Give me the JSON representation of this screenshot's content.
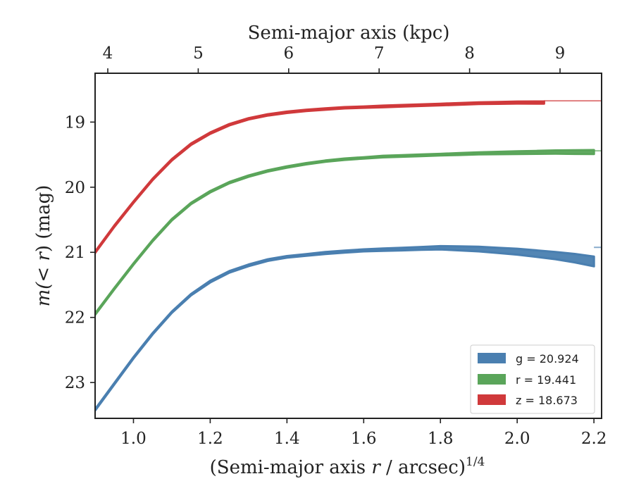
{
  "chart_data": {
    "type": "area",
    "title": "",
    "xlabel_prefix": "(Semi-major axis ",
    "xlabel_var": "r",
    "xlabel_suffix": " / arcsec)",
    "xlabel_exponent": "1/4",
    "ylabel_prefix": "m(",
    "ylabel_var": "< r",
    "ylabel_suffix": ") (mag)",
    "top_xlabel": "Semi-major axis (kpc)",
    "xlim": [
      0.9,
      2.22
    ],
    "ylim": [
      23.55,
      18.25
    ],
    "y_inverted": true,
    "xticks": [
      1.0,
      1.2,
      1.4,
      1.6,
      1.8,
      2.0,
      2.2
    ],
    "xtick_labels": [
      "1.0",
      "1.2",
      "1.4",
      "1.6",
      "1.8",
      "2.0",
      "2.2"
    ],
    "yticks": [
      19,
      20,
      21,
      22,
      23
    ],
    "ytick_labels": [
      "19",
      "20",
      "21",
      "22",
      "23"
    ],
    "top_xticks_kpc": [
      4,
      5,
      6,
      7,
      8,
      9
    ],
    "top_xtick_labels": [
      "4",
      "5",
      "6",
      "7",
      "8",
      "9"
    ],
    "legend_position": "lower-right",
    "series": [
      {
        "name": "g = 20.924",
        "band": "g",
        "total_mag": "20.924",
        "color": "#4a7fb0",
        "x": [
          0.9,
          0.95,
          1.0,
          1.05,
          1.1,
          1.15,
          1.2,
          1.25,
          1.3,
          1.35,
          1.4,
          1.45,
          1.5,
          1.55,
          1.6,
          1.65,
          1.7,
          1.75,
          1.8,
          1.85,
          1.9,
          1.95,
          2.0,
          2.05,
          2.1,
          2.15,
          2.2
        ],
        "y": [
          23.42,
          23.02,
          22.62,
          22.25,
          21.92,
          21.65,
          21.45,
          21.3,
          21.2,
          21.12,
          21.07,
          21.04,
          21.01,
          20.99,
          20.97,
          20.96,
          20.95,
          20.94,
          20.93,
          20.94,
          20.95,
          20.97,
          20.99,
          21.02,
          21.05,
          21.09,
          21.14
        ],
        "err": [
          0.01,
          0.01,
          0.01,
          0.01,
          0.01,
          0.01,
          0.012,
          0.012,
          0.012,
          0.012,
          0.012,
          0.012,
          0.015,
          0.015,
          0.015,
          0.018,
          0.02,
          0.022,
          0.025,
          0.03,
          0.035,
          0.04,
          0.045,
          0.05,
          0.055,
          0.065,
          0.075
        ],
        "asymptote": 20.924
      },
      {
        "name": "r = 19.441",
        "band": "r",
        "total_mag": "19.441",
        "color": "#5aa55a",
        "x": [
          0.9,
          0.95,
          1.0,
          1.05,
          1.1,
          1.15,
          1.2,
          1.25,
          1.3,
          1.35,
          1.4,
          1.45,
          1.5,
          1.55,
          1.6,
          1.65,
          1.7,
          1.75,
          1.8,
          1.85,
          1.9,
          1.95,
          2.0,
          2.05,
          2.1,
          2.15,
          2.2
        ],
        "y": [
          21.95,
          21.56,
          21.18,
          20.82,
          20.5,
          20.25,
          20.07,
          19.93,
          19.83,
          19.75,
          19.69,
          19.64,
          19.6,
          19.57,
          19.55,
          19.53,
          19.52,
          19.51,
          19.5,
          19.49,
          19.48,
          19.475,
          19.47,
          19.465,
          19.46,
          19.46,
          19.46
        ],
        "err": [
          0.01,
          0.01,
          0.01,
          0.01,
          0.01,
          0.01,
          0.01,
          0.01,
          0.01,
          0.01,
          0.01,
          0.01,
          0.01,
          0.01,
          0.01,
          0.012,
          0.012,
          0.012,
          0.012,
          0.015,
          0.015,
          0.018,
          0.02,
          0.022,
          0.025,
          0.028,
          0.03
        ],
        "asymptote": 19.441
      },
      {
        "name": "z = 18.673",
        "band": "z",
        "total_mag": "18.673",
        "color": "#d0393b",
        "x": [
          0.9,
          0.95,
          1.0,
          1.05,
          1.1,
          1.15,
          1.2,
          1.25,
          1.3,
          1.35,
          1.4,
          1.45,
          1.5,
          1.55,
          1.6,
          1.65,
          1.7,
          1.75,
          1.8,
          1.85,
          1.9,
          1.95,
          2.0,
          2.05,
          2.07
        ],
        "y": [
          21.0,
          20.6,
          20.23,
          19.88,
          19.58,
          19.34,
          19.17,
          19.04,
          18.95,
          18.89,
          18.85,
          18.82,
          18.8,
          18.78,
          18.77,
          18.76,
          18.75,
          18.74,
          18.73,
          18.72,
          18.71,
          18.705,
          18.7,
          18.7,
          18.7
        ],
        "err": [
          0.01,
          0.01,
          0.01,
          0.01,
          0.01,
          0.01,
          0.01,
          0.01,
          0.01,
          0.01,
          0.01,
          0.01,
          0.01,
          0.01,
          0.01,
          0.012,
          0.012,
          0.012,
          0.012,
          0.013,
          0.013,
          0.014,
          0.015,
          0.016,
          0.016
        ],
        "asymptote": 18.673
      }
    ]
  }
}
